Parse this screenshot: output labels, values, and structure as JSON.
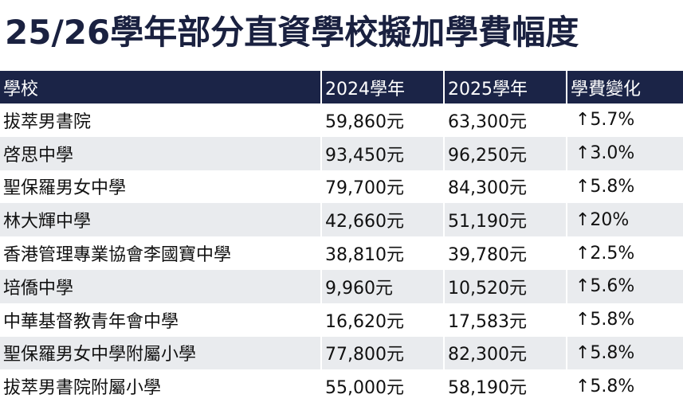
{
  "title": "25/26學年部分直資學校擬加學費幅度",
  "table": {
    "headers": [
      "學校",
      "2024學年",
      "2025學年",
      "學費變化"
    ],
    "rows": [
      {
        "school": "拔萃男書院",
        "fee_2024": "59,860元",
        "fee_2025": "63,300元",
        "change": "↑5.7%"
      },
      {
        "school": "啓思中學",
        "fee_2024": "93,450元",
        "fee_2025": "96,250元",
        "change": "↑3.0%"
      },
      {
        "school": "聖保羅男女中學",
        "fee_2024": "79,700元",
        "fee_2025": "84,300元",
        "change": "↑5.8%"
      },
      {
        "school": "林大輝中學",
        "fee_2024": "42,660元",
        "fee_2025": "51,190元",
        "change": "↑20%"
      },
      {
        "school": "香港管理專業協會李國寶中學",
        "fee_2024": "38,810元",
        "fee_2025": "39,780元",
        "change": "↑2.5%"
      },
      {
        "school": "培僑中學",
        "fee_2024": "9,960元",
        "fee_2025": "10,520元",
        "change": "↑5.6%"
      },
      {
        "school": "中華基督教青年會中學",
        "fee_2024": "16,620元",
        "fee_2025": "17,583元",
        "change": "↑5.8%"
      },
      {
        "school": "聖保羅男女中學附屬小學",
        "fee_2024": "77,800元",
        "fee_2025": "82,300元",
        "change": "↑5.8%"
      },
      {
        "school": "拔萃男書院附屬小學",
        "fee_2024": "55,000元",
        "fee_2025": "58,190元",
        "change": "↑5.8%"
      }
    ]
  },
  "colors": {
    "header_bg": "#1b2447",
    "title_color": "#1a2140",
    "stripe": "#e9ebee"
  }
}
